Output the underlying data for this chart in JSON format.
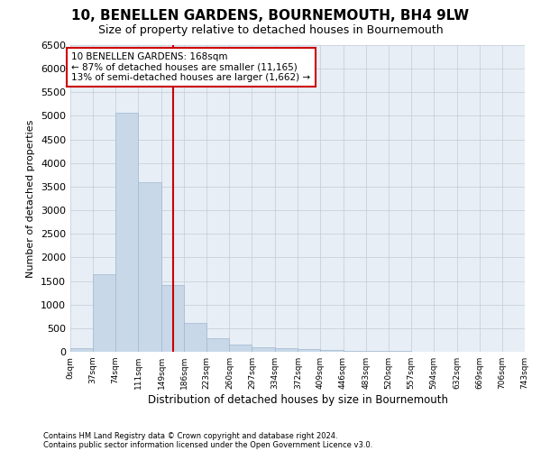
{
  "title": "10, BENELLEN GARDENS, BOURNEMOUTH, BH4 9LW",
  "subtitle": "Size of property relative to detached houses in Bournemouth",
  "xlabel": "Distribution of detached houses by size in Bournemouth",
  "ylabel": "Number of detached properties",
  "bin_edges": [
    0,
    37,
    74,
    111,
    149,
    186,
    223,
    260,
    297,
    334,
    372,
    409,
    446,
    483,
    520,
    557,
    594,
    632,
    669,
    706,
    743
  ],
  "bar_heights": [
    70,
    1650,
    5060,
    3590,
    1420,
    620,
    290,
    150,
    100,
    80,
    50,
    30,
    20,
    15,
    10,
    8,
    5,
    5,
    4,
    3
  ],
  "bar_color": "#c8d8e8",
  "bar_edge_color": "#a0b8d0",
  "property_size": 168,
  "vline_color": "#cc0000",
  "annotation_line1": "10 BENELLEN GARDENS: 168sqm",
  "annotation_line2": "← 87% of detached houses are smaller (11,165)",
  "annotation_line3": "13% of semi-detached houses are larger (1,662) →",
  "annotation_box_color": "#ffffff",
  "annotation_box_edge_color": "#cc0000",
  "ylim": [
    0,
    6500
  ],
  "yticks": [
    0,
    500,
    1000,
    1500,
    2000,
    2500,
    3000,
    3500,
    4000,
    4500,
    5000,
    5500,
    6000,
    6500
  ],
  "footnote1": "Contains HM Land Registry data © Crown copyright and database right 2024.",
  "footnote2": "Contains public sector information licensed under the Open Government Licence v3.0.",
  "background_color": "#ffffff",
  "plot_bg_color": "#e8eef5",
  "grid_color": "#c0ccd8",
  "title_fontsize": 11,
  "subtitle_fontsize": 9
}
